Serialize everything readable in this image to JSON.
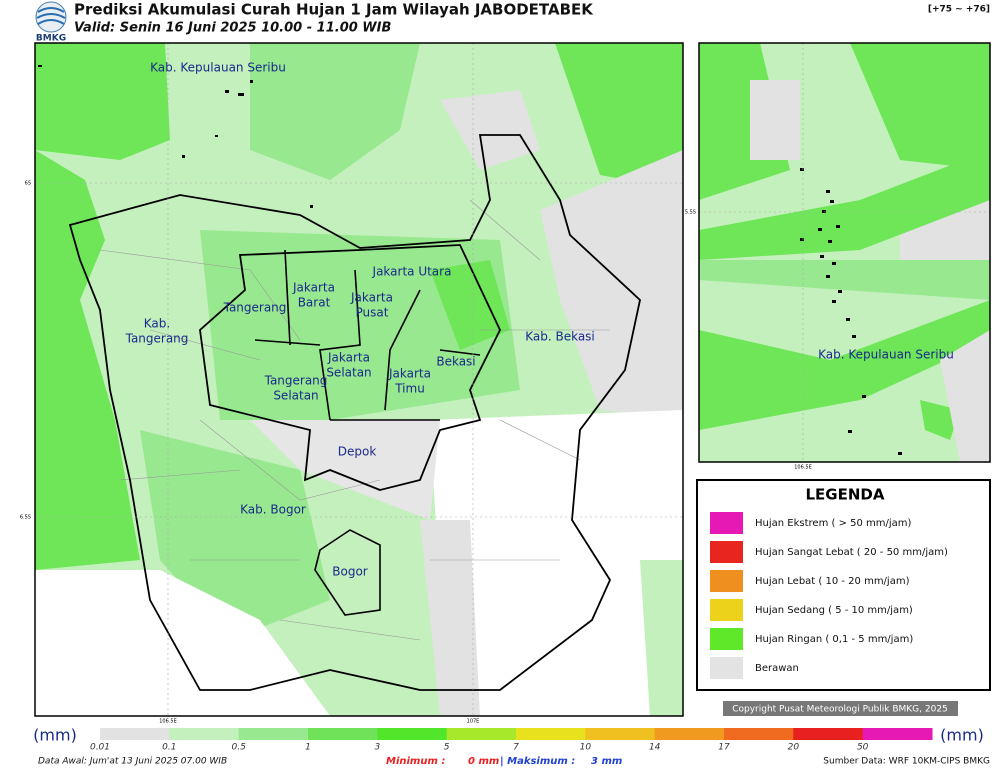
{
  "header": {
    "title": "Prediksi Akumulasi Curah Hujan 1 Jam Wilayah JABODETABEK",
    "subtitle": "Valid: Senin 16 Juni 2025 10.00 - 11.00 WIB",
    "range": "[+75 ~ +76]",
    "logo": "BMKG"
  },
  "map": {
    "labels": [
      {
        "lines": [
          "Kab. Kepulauan Seribu"
        ]
      },
      {
        "lines": [
          "Kab.",
          "Tangerang"
        ]
      },
      {
        "lines": [
          "Tangerang"
        ]
      },
      {
        "lines": [
          "Jakarta",
          "Barat"
        ]
      },
      {
        "lines": [
          "Jakarta Utara"
        ]
      },
      {
        "lines": [
          "Jakarta",
          "Pusat"
        ]
      },
      {
        "lines": [
          "Jakarta",
          "Selatan"
        ]
      },
      {
        "lines": [
          "Jakarta",
          "Timu"
        ]
      },
      {
        "lines": [
          "Tangerang",
          "Selatan"
        ]
      },
      {
        "lines": [
          "Bekasi"
        ]
      },
      {
        "lines": [
          "Kab. Bekasi"
        ]
      },
      {
        "lines": [
          "Depok"
        ]
      },
      {
        "lines": [
          "Kab. Bogor"
        ]
      },
      {
        "lines": [
          "Bogor"
        ]
      }
    ],
    "lat": [
      "6S",
      "6.5S"
    ],
    "lon": [
      "106.5E",
      "107E"
    ]
  },
  "inset": {
    "label": "Kab. Kepulauan Seribu",
    "lat": "5.5S",
    "lon": "106.5E"
  },
  "legend": {
    "title": "LEGENDA",
    "items": [
      {
        "label": "Hujan Ekstrem ( > 50 mm/jam)",
        "color": "#e619b4"
      },
      {
        "label": "Hujan Sangat Lebat ( 20 - 50 mm/jam)",
        "color": "#e8261f"
      },
      {
        "label": "Hujan Lebat ( 10 - 20 mm/jam)",
        "color": "#ee8f1f"
      },
      {
        "label": "Hujan Sedang ( 5 - 10 mm/jam)",
        "color": "#ecd21a"
      },
      {
        "label": "Hujan Ringan ( 0,1 - 5 mm/jam)",
        "color": "#5fe82a"
      },
      {
        "label": "Berawan",
        "color": "#e3e3e3"
      }
    ]
  },
  "copyright": "Copyright Pusat Meteorologi Publik BMKG, 2025",
  "colorbar": {
    "unit": "(mm)",
    "ticks": [
      "0.01",
      "0.1",
      "0.5",
      "1",
      "3",
      "5",
      "7",
      "10",
      "14",
      "17",
      "20",
      "50"
    ],
    "colors": [
      "#e2e2e2",
      "#c4f0bd",
      "#98e890",
      "#6fe25a",
      "#52e62a",
      "#a8e82a",
      "#e8e21e",
      "#f0c020",
      "#f09a20",
      "#f06a20",
      "#e82020",
      "#e619b4"
    ]
  },
  "footer": {
    "data_awal": "Data Awal: Jum'at 13 Juni 2025 07.00 WIB",
    "min_label": "Minimum :",
    "min_value": "0 mm",
    "max_label": "| Maksimum :",
    "max_value": "3 mm",
    "source": "Sumber Data: WRF 10KM-CIPS BMKG"
  }
}
